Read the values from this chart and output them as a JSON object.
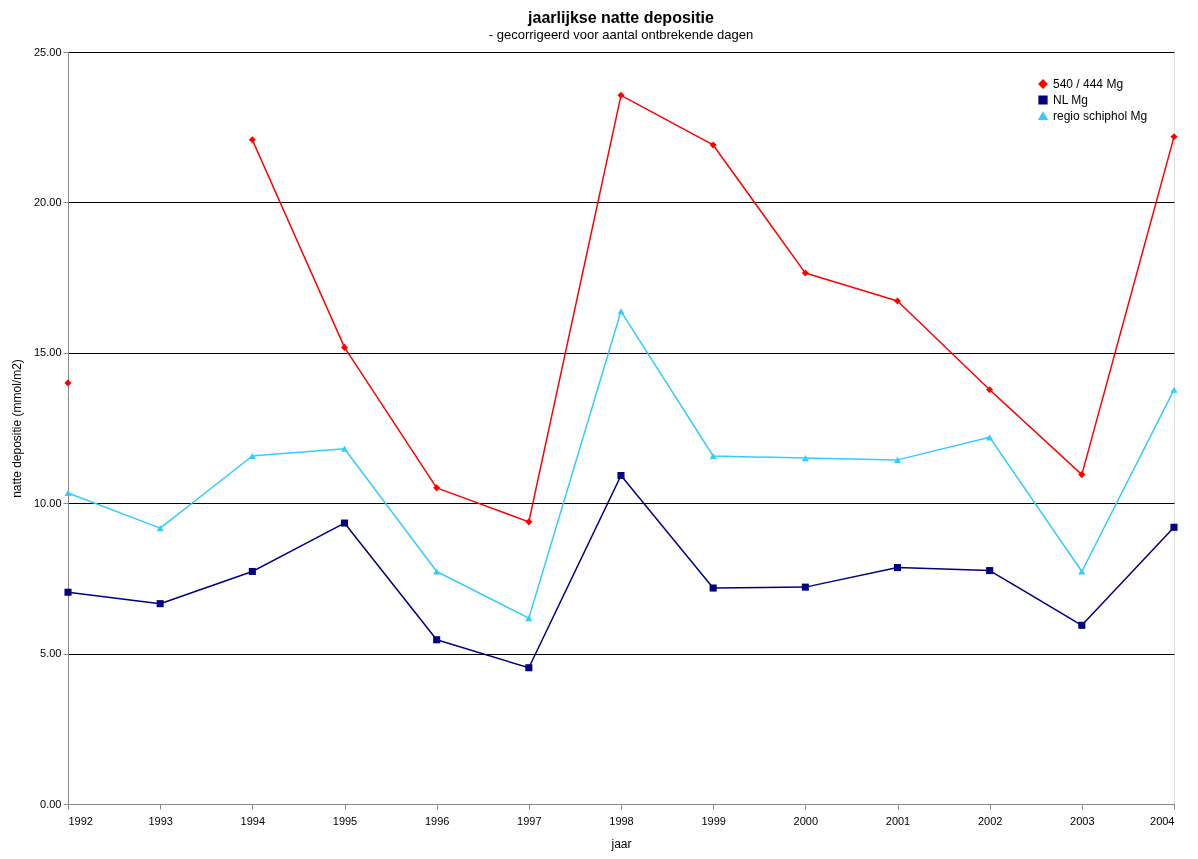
{
  "chart_data": {
    "type": "line",
    "title": "jaarlijkse natte depositie",
    "subtitle": "-   gecorrigeerd voor aantal ontbrekende dagen",
    "xlabel": "jaar",
    "ylabel": "natte depositie (mmol/m2)",
    "x": [
      1992,
      1993,
      1994,
      1995,
      1996,
      1997,
      1998,
      1999,
      2000,
      2001,
      2002,
      2003,
      2004
    ],
    "series": [
      {
        "name": "540 / 444 Mg",
        "color": "#ff0000",
        "marker": "diamond",
        "values": [
          14.0,
          null,
          22.08,
          15.18,
          10.51,
          9.38,
          23.56,
          21.91,
          17.65,
          16.72,
          13.77,
          10.95,
          22.18
        ]
      },
      {
        "name": "NL Mg",
        "color": "#000080",
        "marker": "square",
        "values": [
          7.04,
          6.66,
          7.73,
          9.34,
          5.46,
          4.53,
          10.92,
          7.18,
          7.21,
          7.86,
          7.76,
          5.94,
          9.2
        ]
      },
      {
        "name": "regio schiphol Mg",
        "color": "#33ccff",
        "marker": "triangle",
        "values": [
          10.34,
          9.17,
          11.57,
          11.81,
          7.73,
          6.18,
          16.38,
          11.57,
          11.5,
          11.44,
          12.19,
          7.73,
          13.77
        ]
      }
    ],
    "xlim": [
      1992,
      2004
    ],
    "xticks": [
      1992,
      1993,
      1994,
      1995,
      1996,
      1997,
      1998,
      1999,
      2000,
      2001,
      2002,
      2003,
      2004
    ],
    "ylim": [
      0,
      25
    ],
    "yticks": [
      {
        "value": 0,
        "label": "0.00"
      },
      {
        "value": 5,
        "label": "5.00"
      },
      {
        "value": 10,
        "label": "10.00"
      },
      {
        "value": 15,
        "label": "15.00"
      },
      {
        "value": 20,
        "label": "20.00"
      },
      {
        "value": 25,
        "label": "25.00"
      }
    ],
    "grid": "y",
    "legend": "top right",
    "line_style": "solid"
  }
}
